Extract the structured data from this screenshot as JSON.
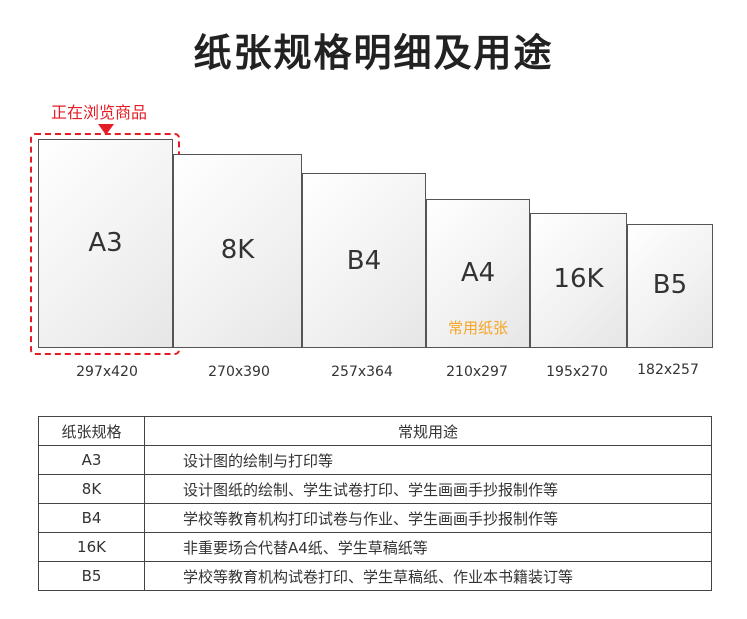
{
  "title": "纸张规格明细及用途",
  "badge": "正在浏览商品",
  "papers": [
    {
      "name": "A3",
      "dims": "297x420",
      "note": ""
    },
    {
      "name": "8K",
      "dims": "270x390",
      "note": ""
    },
    {
      "name": "B4",
      "dims": "257x364",
      "note": ""
    },
    {
      "name": "A4",
      "dims": "210x297",
      "note": "常用纸张"
    },
    {
      "name": "16K",
      "dims": "195x270",
      "note": ""
    },
    {
      "name": "B5",
      "dims": "182x257",
      "note": ""
    }
  ],
  "accent_color": "#e51c23",
  "note_color": "#f5a623",
  "table": {
    "headers": [
      "纸张规格",
      "常规用途"
    ],
    "rows": [
      [
        "A3",
        "设计图的绘制与打印等"
      ],
      [
        "8K",
        "设计图纸的绘制、学生试卷打印、学生画画手抄报制作等"
      ],
      [
        "B4",
        "学校等教育机构打印试卷与作业、学生画画手抄报制作等"
      ],
      [
        "16K",
        "非重要场合代替A4纸、学生草稿纸等"
      ],
      [
        "B5",
        "学校等教育机构试卷打印、学生草稿纸、作业本书籍装订等"
      ]
    ]
  }
}
